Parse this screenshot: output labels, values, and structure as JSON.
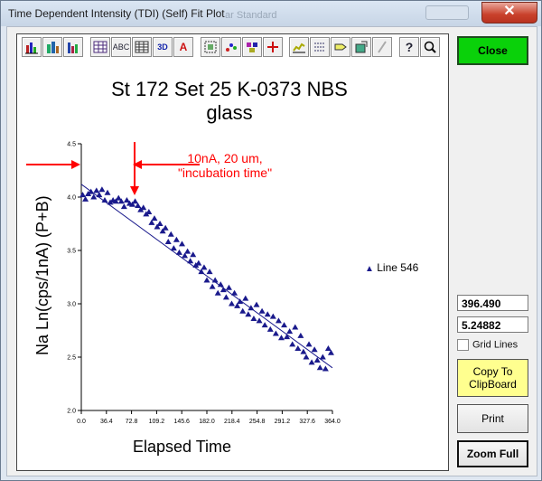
{
  "window": {
    "title": "Time Dependent Intensity (TDI) (Self) Fit Plot",
    "close_glyph": "✕"
  },
  "toolbar": {
    "icons": [
      "bar-chart-icon",
      "3d-bar-icon",
      "grouped-bar-icon",
      "data-grid-icon",
      "abc-label-icon",
      "table-icon",
      "3d-icon",
      "font-icon",
      "pattern-icon",
      "point-style-icon",
      "legend-icon",
      "cursor-icon",
      "axis-icon",
      "list-icon",
      "tag-icon",
      "export-icon",
      "pencil-icon",
      "help-icon",
      "zoom-icon"
    ],
    "labels": {
      "abc": "ABC",
      "three_d": "3D",
      "font": "A",
      "help": "?"
    }
  },
  "buttons": {
    "close": "Close",
    "copy": [
      "Copy To",
      "ClipBoard"
    ],
    "print": "Print",
    "zoom_full": "Zoom Full"
  },
  "readouts": {
    "value1": "396.490",
    "value2": "5.24882"
  },
  "grid_lines": {
    "label": "Grid Lines",
    "checked": false
  },
  "colors": {
    "series": "#1a1a8c",
    "annotation": "#ff0000",
    "close_button": "#0ad10a",
    "copy_button": "#ffff8f"
  },
  "chart_data": {
    "type": "scatter",
    "title": [
      "St  172 Set  25 K-0373 NBS",
      "glass"
    ],
    "xlabel": "Elapsed Time",
    "ylabel": "Na Ln(cps/1nA) (P+B)",
    "xlim": [
      0,
      364
    ],
    "ylim": [
      2.0,
      4.5
    ],
    "x_ticks": [
      "0.0",
      "36.4",
      "72.8",
      "109.2",
      "145.6",
      "182.0",
      "218.4",
      "254.8",
      "291.2",
      "327.6",
      "364.0"
    ],
    "y_ticks": [
      "2.0",
      "2.5",
      "3.0",
      "3.5",
      "4.0",
      "4.5"
    ],
    "grid": false,
    "legend": {
      "position": "right",
      "entry": "Line 546",
      "marker": "triangle"
    },
    "annotation": {
      "lines": [
        "10nA, 20 um,",
        "\"incubation time\""
      ]
    },
    "series": [
      {
        "name": "Line 546",
        "x": [
          2,
          6,
          10,
          14,
          18,
          22,
          26,
          30,
          34,
          38,
          42,
          46,
          50,
          54,
          58,
          62,
          66,
          70,
          74,
          78,
          82,
          86,
          90,
          94,
          98,
          102,
          106,
          110,
          114,
          118,
          122,
          126,
          130,
          134,
          138,
          142,
          146,
          150,
          154,
          158,
          162,
          166,
          170,
          174,
          178,
          182,
          186,
          190,
          194,
          198,
          202,
          206,
          210,
          214,
          218,
          222,
          226,
          230,
          234,
          238,
          242,
          246,
          250,
          254,
          258,
          262,
          266,
          270,
          274,
          278,
          282,
          286,
          290,
          294,
          298,
          302,
          306,
          310,
          314,
          318,
          322,
          326,
          330,
          334,
          338,
          342,
          346,
          350,
          354,
          358,
          362
        ],
        "y": [
          4.02,
          3.98,
          4.03,
          4.05,
          4.0,
          4.06,
          4.02,
          4.07,
          3.97,
          4.04,
          3.95,
          3.97,
          3.96,
          3.99,
          3.96,
          3.91,
          3.97,
          3.94,
          3.93,
          3.96,
          3.92,
          3.88,
          3.9,
          3.84,
          3.86,
          3.76,
          3.8,
          3.72,
          3.75,
          3.68,
          3.71,
          3.58,
          3.65,
          3.52,
          3.6,
          3.48,
          3.56,
          3.45,
          3.49,
          3.4,
          3.46,
          3.36,
          3.38,
          3.3,
          3.34,
          3.22,
          3.3,
          3.16,
          3.22,
          3.1,
          3.18,
          3.13,
          3.06,
          3.15,
          3.0,
          3.1,
          2.98,
          3.02,
          2.93,
          3.05,
          2.9,
          2.96,
          2.86,
          2.99,
          2.84,
          2.93,
          2.8,
          2.9,
          2.76,
          2.88,
          2.72,
          2.84,
          2.68,
          2.8,
          2.69,
          2.74,
          2.62,
          2.78,
          2.58,
          2.7,
          2.55,
          2.5,
          2.62,
          2.45,
          2.57,
          2.47,
          2.4,
          2.5,
          2.39,
          2.58,
          2.54
        ]
      }
    ],
    "fit_line": {
      "x": [
        0,
        364
      ],
      "y": [
        4.12,
        2.4
      ]
    }
  }
}
